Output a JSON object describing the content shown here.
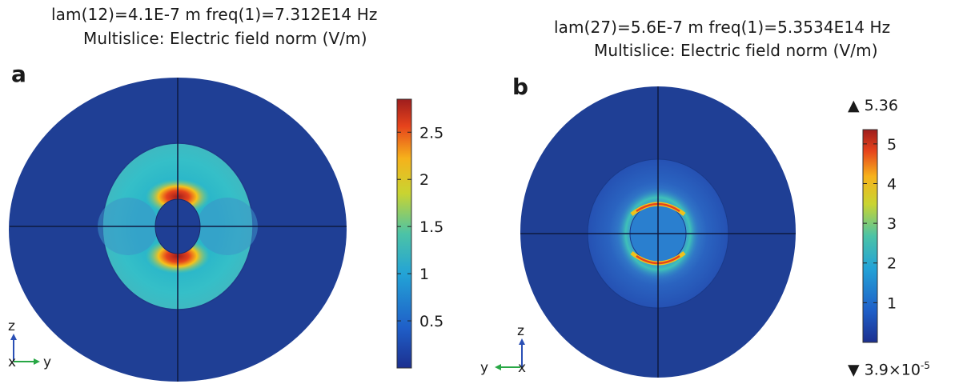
{
  "panels": [
    {
      "letter": "a",
      "title_line1": "lam(12)=4.1E-7 m freq(1)=7.312E14 Hz",
      "title_line2": "Multislice: Electric field norm (V/m)",
      "colorbar_ticks": [
        "2.5",
        "2",
        "1.5",
        "1",
        "0.5"
      ],
      "colorbar_tick_values": [
        2.5,
        2,
        1.5,
        1,
        0.5
      ],
      "colorbar_range": [
        0,
        2.85
      ],
      "axis_triad": {
        "vertical": "z",
        "horizontal": "y",
        "origin": "x"
      }
    },
    {
      "letter": "b",
      "title_line1": "lam(27)=5.6E-7 m freq(1)=5.3534E14 Hz",
      "title_line2": "Multislice: Electric field norm (V/m)",
      "colorbar_ticks": [
        "5",
        "4",
        "3",
        "2",
        "1"
      ],
      "colorbar_tick_values": [
        5,
        4,
        3,
        2,
        1
      ],
      "colorbar_range": [
        3.9e-05,
        5.36
      ],
      "max_label": "▲ 5.36",
      "min_label": "▼ 3.9×10",
      "min_exponent": "-5",
      "axis_triad": {
        "vertical": "z",
        "horizontal": "y",
        "origin": "x"
      }
    }
  ],
  "colors": {
    "background_field": "#1f3f95",
    "colormap": [
      "#1c2f8f",
      "#1f5fc8",
      "#23a3d6",
      "#4cc3a6",
      "#c9d431",
      "#f6b21b",
      "#e6431c",
      "#9e1d1d"
    ]
  }
}
